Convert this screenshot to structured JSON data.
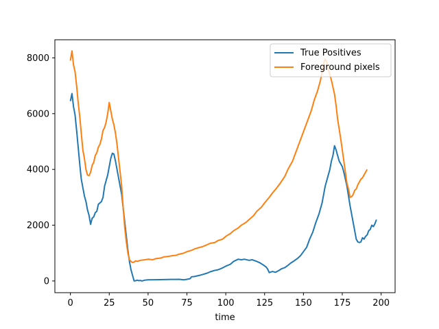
{
  "chart_data": {
    "type": "line",
    "title": "",
    "xlabel": "time",
    "ylabel": "",
    "xlim": [
      -10,
      209
    ],
    "ylim": [
      -420,
      8650
    ],
    "xticks": [
      0,
      25,
      50,
      75,
      100,
      125,
      150,
      175,
      200
    ],
    "yticks": [
      0,
      2000,
      4000,
      6000,
      8000
    ],
    "grid": false,
    "legend_position": "top-right",
    "series": [
      {
        "name": "True Positives",
        "color": "#1f77b4",
        "points": [
          [
            0,
            6450
          ],
          [
            1,
            6720
          ],
          [
            2,
            6250
          ],
          [
            3,
            5950
          ],
          [
            4,
            5400
          ],
          [
            5,
            4800
          ],
          [
            6,
            4200
          ],
          [
            7,
            3650
          ],
          [
            8,
            3350
          ],
          [
            9,
            3050
          ],
          [
            10,
            2850
          ],
          [
            11,
            2550
          ],
          [
            12,
            2350
          ],
          [
            13,
            2030
          ],
          [
            14,
            2250
          ],
          [
            15,
            2300
          ],
          [
            16,
            2450
          ],
          [
            17,
            2500
          ],
          [
            18,
            2750
          ],
          [
            19,
            2800
          ],
          [
            20,
            2850
          ],
          [
            21,
            3000
          ],
          [
            22,
            3400
          ],
          [
            23,
            3600
          ],
          [
            24,
            3800
          ],
          [
            25,
            4100
          ],
          [
            26,
            4400
          ],
          [
            27,
            4580
          ],
          [
            28,
            4550
          ],
          [
            29,
            4300
          ],
          [
            30,
            4000
          ],
          [
            31,
            3700
          ],
          [
            32,
            3400
          ],
          [
            33,
            3100
          ],
          [
            34,
            2600
          ],
          [
            35,
            2100
          ],
          [
            36,
            1600
          ],
          [
            37,
            1100
          ],
          [
            38,
            700
          ],
          [
            39,
            400
          ],
          [
            40,
            200
          ],
          [
            41,
            0
          ],
          [
            42,
            10
          ],
          [
            43,
            30
          ],
          [
            44,
            10
          ],
          [
            45,
            20
          ],
          [
            46,
            0
          ],
          [
            48,
            30
          ],
          [
            50,
            40
          ],
          [
            55,
            45
          ],
          [
            60,
            50
          ],
          [
            65,
            55
          ],
          [
            70,
            60
          ],
          [
            73,
            40
          ],
          [
            75,
            60
          ],
          [
            77,
            80
          ],
          [
            78,
            150
          ],
          [
            80,
            160
          ],
          [
            83,
            200
          ],
          [
            85,
            230
          ],
          [
            88,
            280
          ],
          [
            90,
            330
          ],
          [
            93,
            380
          ],
          [
            95,
            400
          ],
          [
            98,
            470
          ],
          [
            100,
            530
          ],
          [
            103,
            600
          ],
          [
            105,
            700
          ],
          [
            108,
            780
          ],
          [
            110,
            760
          ],
          [
            112,
            780
          ],
          [
            115,
            740
          ],
          [
            117,
            760
          ],
          [
            120,
            700
          ],
          [
            122,
            650
          ],
          [
            124,
            580
          ],
          [
            126,
            500
          ],
          [
            127,
            420
          ],
          [
            128,
            300
          ],
          [
            130,
            340
          ],
          [
            132,
            310
          ],
          [
            134,
            370
          ],
          [
            136,
            440
          ],
          [
            138,
            480
          ],
          [
            140,
            560
          ],
          [
            142,
            650
          ],
          [
            144,
            720
          ],
          [
            146,
            800
          ],
          [
            148,
            900
          ],
          [
            150,
            1050
          ],
          [
            152,
            1200
          ],
          [
            154,
            1500
          ],
          [
            156,
            1750
          ],
          [
            158,
            2100
          ],
          [
            160,
            2400
          ],
          [
            162,
            2800
          ],
          [
            164,
            3400
          ],
          [
            166,
            3800
          ],
          [
            167,
            4000
          ],
          [
            168,
            4300
          ],
          [
            169,
            4500
          ],
          [
            170,
            4850
          ],
          [
            171,
            4700
          ],
          [
            172,
            4500
          ],
          [
            173,
            4300
          ],
          [
            175,
            4100
          ],
          [
            176,
            3900
          ],
          [
            178,
            3400
          ],
          [
            180,
            2700
          ],
          [
            182,
            2100
          ],
          [
            184,
            1500
          ],
          [
            185,
            1400
          ],
          [
            186,
            1380
          ],
          [
            187,
            1400
          ],
          [
            188,
            1550
          ],
          [
            189,
            1500
          ],
          [
            190,
            1600
          ],
          [
            191,
            1650
          ],
          [
            192,
            1800
          ],
          [
            193,
            1850
          ],
          [
            194,
            2000
          ],
          [
            195,
            1950
          ],
          [
            196,
            2050
          ],
          [
            197,
            2200
          ]
        ]
      },
      {
        "name": "Foreground pixels",
        "color": "#ff7f0e",
        "points": [
          [
            0,
            7900
          ],
          [
            1,
            8250
          ],
          [
            2,
            7750
          ],
          [
            3,
            7500
          ],
          [
            4,
            7000
          ],
          [
            5,
            6400
          ],
          [
            6,
            5900
          ],
          [
            7,
            5300
          ],
          [
            8,
            4700
          ],
          [
            9,
            4400
          ],
          [
            10,
            4000
          ],
          [
            11,
            3800
          ],
          [
            12,
            3780
          ],
          [
            13,
            3900
          ],
          [
            14,
            4150
          ],
          [
            15,
            4250
          ],
          [
            16,
            4500
          ],
          [
            17,
            4600
          ],
          [
            18,
            4800
          ],
          [
            19,
            4900
          ],
          [
            20,
            5100
          ],
          [
            21,
            5400
          ],
          [
            22,
            5500
          ],
          [
            23,
            5700
          ],
          [
            24,
            6000
          ],
          [
            25,
            6400
          ],
          [
            26,
            6100
          ],
          [
            27,
            5800
          ],
          [
            28,
            5600
          ],
          [
            29,
            5300
          ],
          [
            30,
            4900
          ],
          [
            31,
            4400
          ],
          [
            32,
            3900
          ],
          [
            33,
            3400
          ],
          [
            34,
            2600
          ],
          [
            35,
            1900
          ],
          [
            36,
            1400
          ],
          [
            37,
            1000
          ],
          [
            38,
            760
          ],
          [
            39,
            700
          ],
          [
            40,
            660
          ],
          [
            41,
            680
          ],
          [
            42,
            720
          ],
          [
            43,
            700
          ],
          [
            45,
            740
          ],
          [
            48,
            760
          ],
          [
            50,
            780
          ],
          [
            53,
            760
          ],
          [
            55,
            800
          ],
          [
            58,
            820
          ],
          [
            60,
            860
          ],
          [
            63,
            880
          ],
          [
            65,
            900
          ],
          [
            68,
            920
          ],
          [
            70,
            960
          ],
          [
            73,
            1000
          ],
          [
            75,
            1050
          ],
          [
            78,
            1100
          ],
          [
            80,
            1150
          ],
          [
            83,
            1200
          ],
          [
            85,
            1230
          ],
          [
            88,
            1300
          ],
          [
            90,
            1350
          ],
          [
            93,
            1380
          ],
          [
            95,
            1450
          ],
          [
            98,
            1500
          ],
          [
            100,
            1600
          ],
          [
            103,
            1700
          ],
          [
            105,
            1800
          ],
          [
            108,
            1900
          ],
          [
            110,
            2000
          ],
          [
            113,
            2100
          ],
          [
            115,
            2200
          ],
          [
            118,
            2350
          ],
          [
            120,
            2500
          ],
          [
            123,
            2650
          ],
          [
            125,
            2800
          ],
          [
            128,
            3000
          ],
          [
            130,
            3150
          ],
          [
            133,
            3350
          ],
          [
            135,
            3500
          ],
          [
            138,
            3750
          ],
          [
            140,
            4000
          ],
          [
            143,
            4300
          ],
          [
            145,
            4600
          ],
          [
            147,
            4900
          ],
          [
            149,
            5200
          ],
          [
            151,
            5500
          ],
          [
            153,
            5800
          ],
          [
            155,
            6100
          ],
          [
            157,
            6500
          ],
          [
            159,
            6800
          ],
          [
            160,
            7000
          ],
          [
            161,
            7200
          ],
          [
            162,
            7500
          ],
          [
            163,
            7800
          ],
          [
            164,
            7950
          ],
          [
            165,
            7850
          ],
          [
            166,
            7600
          ],
          [
            168,
            7200
          ],
          [
            170,
            6700
          ],
          [
            171,
            6300
          ],
          [
            172,
            5800
          ],
          [
            174,
            5100
          ],
          [
            176,
            4300
          ],
          [
            178,
            3500
          ],
          [
            179,
            3300
          ],
          [
            180,
            3000
          ],
          [
            181,
            3020
          ],
          [
            182,
            3100
          ],
          [
            183,
            3250
          ],
          [
            184,
            3300
          ],
          [
            185,
            3450
          ],
          [
            186,
            3550
          ],
          [
            187,
            3650
          ],
          [
            188,
            3700
          ],
          [
            189,
            3800
          ],
          [
            190,
            3900
          ],
          [
            191,
            4000
          ]
        ]
      }
    ]
  }
}
